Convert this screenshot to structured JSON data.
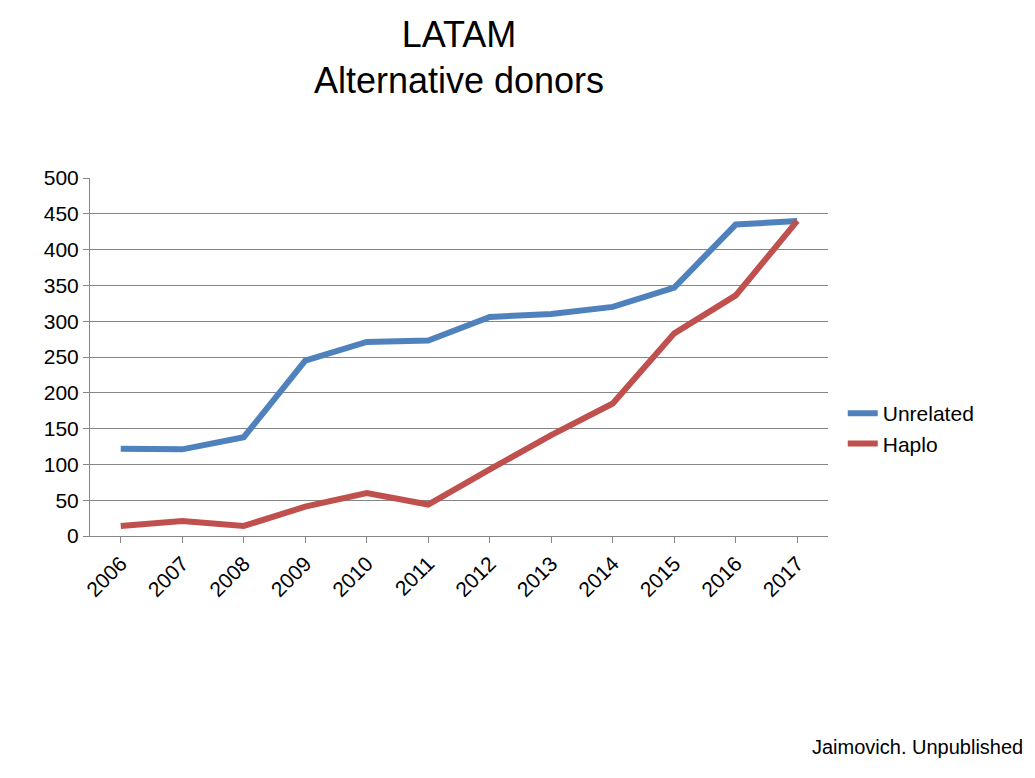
{
  "chart_data": {
    "type": "line",
    "title": [
      "LATAM",
      "Alternative donors"
    ],
    "categories": [
      "2006",
      "2007",
      "2008",
      "2009",
      "2010",
      "2011",
      "2012",
      "2013",
      "2014",
      "2015",
      "2016",
      "2017"
    ],
    "series": [
      {
        "name": "Unrelated",
        "color": "#4f81bd",
        "values": [
          122,
          121,
          138,
          245,
          271,
          273,
          306,
          310,
          320,
          347,
          435,
          440
        ]
      },
      {
        "name": "Haplo",
        "color": "#c0504d",
        "values": [
          14,
          21,
          14,
          41,
          60,
          44,
          93,
          141,
          185,
          283,
          336,
          440
        ]
      }
    ],
    "ylim": [
      0,
      500
    ],
    "yticks": [
      0,
      50,
      100,
      150,
      200,
      250,
      300,
      350,
      400,
      450,
      500
    ],
    "grid": true,
    "legend": "right",
    "annotation": "Jaimovich. Unpublished"
  }
}
